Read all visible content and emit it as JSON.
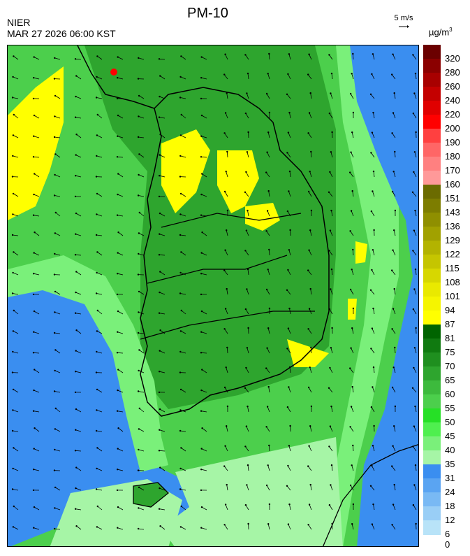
{
  "header": {
    "agency": "NIER",
    "timestamp": "MAR 27 2026 06:00 KST",
    "title": "PM-10",
    "wind_reference": "5 m/s",
    "unit_base": "µg/m",
    "unit_exp": "3"
  },
  "legend": {
    "labels": [
      "320",
      "280",
      "260",
      "240",
      "220",
      "200",
      "190",
      "180",
      "170",
      "160",
      "151",
      "143",
      "136",
      "129",
      "122",
      "115",
      "108",
      "101",
      "94",
      "87",
      "81",
      "75",
      "70",
      "65",
      "60",
      "55",
      "50",
      "45",
      "40",
      "35",
      "31",
      "24",
      "18",
      "12",
      "6",
      "0"
    ],
    "colors": [
      "#6b0000",
      "#8b0000",
      "#a80000",
      "#c40000",
      "#e00000",
      "#ff0000",
      "#ff4040",
      "#ff6666",
      "#ff8080",
      "#ff9999",
      "#6b6b00",
      "#7d7d00",
      "#8f8f00",
      "#a1a100",
      "#b3b300",
      "#c5c500",
      "#d7d700",
      "#e9e900",
      "#f5f500",
      "#ffff00",
      "#006400",
      "#107a10",
      "#1f8f1f",
      "#2ea52e",
      "#3dba3d",
      "#4ccf4c",
      "#26e026",
      "#4fef4f",
      "#7af07a",
      "#a6f5a6",
      "#3a8ef0",
      "#5aa4f2",
      "#79b9f4",
      "#99ceF6",
      "#b8e3f8"
    ]
  },
  "colors": {
    "ocean_low": "#4da2f0",
    "ocean_mid": "#a6f5a6",
    "land_green": "#3dba3d",
    "land_dark": "#2ea52e",
    "yellow": "#ffff00",
    "border": "#000000"
  }
}
